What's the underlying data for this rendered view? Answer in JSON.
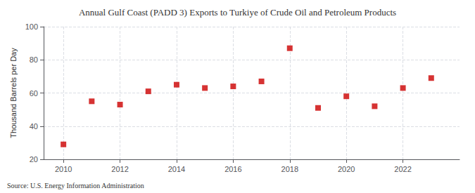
{
  "chart_data": {
    "type": "scatter",
    "title": "Annual Gulf Coast (PADD 3) Exports to Turkiye of Crude Oil and Petroleum Products",
    "ylabel": "Thousand Barrels per Day",
    "source": "Source: U.S. Energy Information Administration",
    "x": [
      2010,
      2011,
      2012,
      2013,
      2014,
      2015,
      2016,
      2017,
      2018,
      2019,
      2020,
      2021,
      2022,
      2023
    ],
    "values": [
      29,
      55,
      53,
      61,
      65,
      63,
      64,
      67,
      87,
      51,
      58,
      52,
      63,
      69
    ],
    "color": "#cc0000",
    "marker": "square",
    "xlim": [
      2009.3,
      2024.0
    ],
    "xticks": [
      2010,
      2012,
      2014,
      2016,
      2018,
      2020,
      2022
    ],
    "ylim": [
      20,
      100
    ],
    "yticks": [
      20,
      40,
      60,
      80,
      100
    ],
    "grid": true
  }
}
